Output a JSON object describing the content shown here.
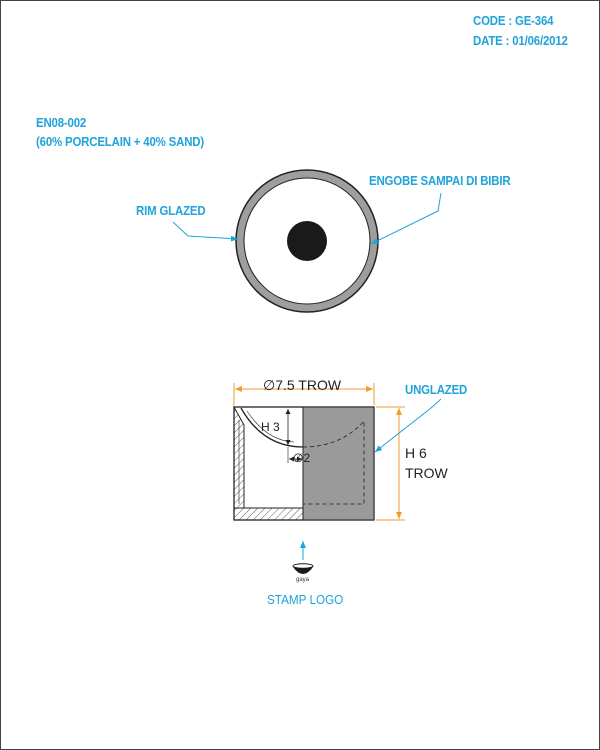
{
  "header": {
    "code": "CODE : GE-364",
    "date": "DATE : 01/06/2012"
  },
  "material": {
    "code": "EN08-002",
    "composition": "(60% PORCELAIN + 40% SAND)"
  },
  "top_view": {
    "rim_label": "RIM GLAZED",
    "engobe_label": "ENGOBE SAMPAI DI BIBIR"
  },
  "section_view": {
    "diameter": "∅7.5 TROW",
    "inner_height": "H 3",
    "inner_diameter": "∅2",
    "height_line1": "H 6",
    "height_line2": "TROW",
    "unglazed_label": "UNGLAZED"
  },
  "stamp": {
    "logo_text": "gaya",
    "label": "STAMP LOGO"
  },
  "colors": {
    "label_blue": "#1fa3d9",
    "dimension_orange": "#f29a2e",
    "rim_grey": "#9e9e9e",
    "unglazed_grey": "#9a9a9a"
  }
}
